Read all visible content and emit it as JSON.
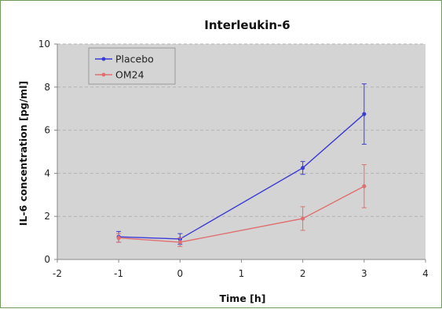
{
  "chart_data": {
    "type": "line",
    "title": "Interleukin-6",
    "xlabel": "Time [h]",
    "ylabel": "IL-6 concentration [pg/ml]",
    "xlim": [
      -2,
      4
    ],
    "ylim": [
      0,
      10
    ],
    "x_ticks": [
      -2,
      -1,
      0,
      1,
      2,
      3,
      4
    ],
    "y_ticks": [
      0,
      2,
      4,
      6,
      8,
      10
    ],
    "grid": true,
    "legend_position": "top-left",
    "background": "#d4d4d4",
    "series": [
      {
        "name": "Placebo",
        "color": "#3b3bd6",
        "x": [
          -1,
          0,
          2,
          3
        ],
        "y": [
          1.05,
          0.95,
          4.25,
          6.75
        ],
        "error": [
          0.25,
          0.25,
          0.3,
          1.4
        ]
      },
      {
        "name": "OM24",
        "color": "#e07070",
        "x": [
          -1,
          0,
          2,
          3
        ],
        "y": [
          1.0,
          0.8,
          1.9,
          3.4
        ],
        "error": [
          0.2,
          0.2,
          0.55,
          1.0
        ]
      }
    ]
  }
}
